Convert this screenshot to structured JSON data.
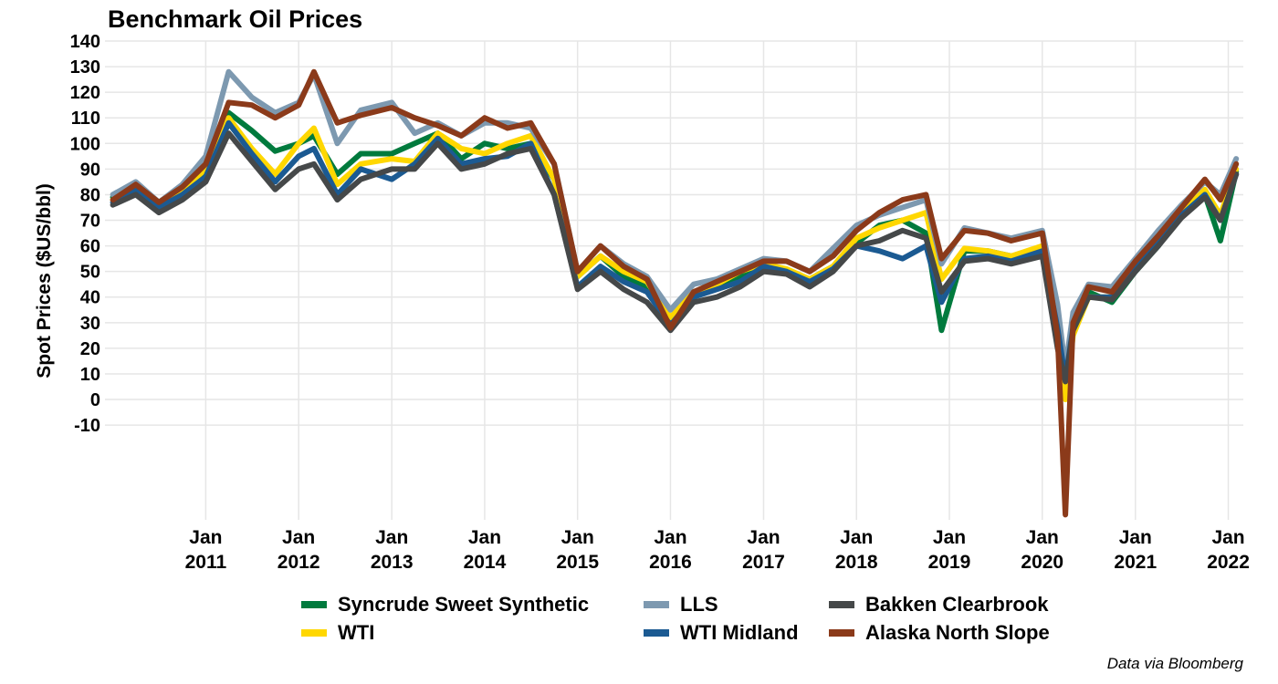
{
  "chart_data": {
    "type": "line",
    "title": "Benchmark Oil Prices",
    "ylabel": "Spot Prices ($US/bbl)",
    "xlabel": "",
    "ylim": [
      -47,
      140
    ],
    "y_ticks": [
      "140",
      "130",
      "120",
      "110",
      "100",
      "90",
      "80",
      "70",
      "60",
      "50",
      "40",
      "30",
      "20",
      "10",
      "0",
      "-10"
    ],
    "x_ticks": [
      {
        "date": "2011-01",
        "label": [
          "Jan",
          "2011"
        ]
      },
      {
        "date": "2012-01",
        "label": [
          "Jan",
          "2012"
        ]
      },
      {
        "date": "2013-01",
        "label": [
          "Jan",
          "2013"
        ]
      },
      {
        "date": "2014-01",
        "label": [
          "Jan",
          "2014"
        ]
      },
      {
        "date": "2015-01",
        "label": [
          "Jan",
          "2015"
        ]
      },
      {
        "date": "2016-01",
        "label": [
          "Jan",
          "2016"
        ]
      },
      {
        "date": "2017-01",
        "label": [
          "Jan",
          "2017"
        ]
      },
      {
        "date": "2018-01",
        "label": [
          "Jan",
          "2018"
        ]
      },
      {
        "date": "2019-01",
        "label": [
          "Jan",
          "2019"
        ]
      },
      {
        "date": "2020-01",
        "label": [
          "Jan",
          "2020"
        ]
      },
      {
        "date": "2021-01",
        "label": [
          "Jan",
          "2021"
        ]
      },
      {
        "date": "2022-01",
        "label": [
          "Jan",
          "2022"
        ]
      }
    ],
    "grid": true,
    "legend_position": "bottom",
    "x": [
      "2010-01",
      "2010-04",
      "2010-07",
      "2010-10",
      "2011-01",
      "2011-04",
      "2011-07",
      "2011-10",
      "2012-01",
      "2012-03",
      "2012-06",
      "2012-09",
      "2013-01",
      "2013-04",
      "2013-07",
      "2013-10",
      "2014-01",
      "2014-04",
      "2014-07",
      "2014-10",
      "2015-01",
      "2015-04",
      "2015-07",
      "2015-10",
      "2016-01",
      "2016-04",
      "2016-07",
      "2016-10",
      "2017-01",
      "2017-04",
      "2017-07",
      "2017-10",
      "2018-01",
      "2018-04",
      "2018-07",
      "2018-10",
      "2018-12",
      "2019-03",
      "2019-06",
      "2019-09",
      "2020-01",
      "2020-03",
      "2020-04",
      "2020-05",
      "2020-07",
      "2020-10",
      "2021-01",
      "2021-04",
      "2021-07",
      "2021-10",
      "2021-12",
      "2022-02"
    ],
    "series": [
      {
        "name": "Syncrude Sweet Synthetic",
        "color": "#007a3d",
        "values": [
          79,
          82,
          76,
          80,
          88,
          112,
          105,
          97,
          100,
          103,
          88,
          96,
          96,
          100,
          104,
          94,
          100,
          98,
          100,
          86,
          48,
          56,
          48,
          44,
          30,
          42,
          44,
          48,
          54,
          50,
          47,
          52,
          61,
          68,
          70,
          65,
          27,
          58,
          58,
          56,
          57,
          22,
          10,
          30,
          42,
          38,
          50,
          60,
          73,
          80,
          62,
          89
        ]
      },
      {
        "name": "WTI",
        "color": "#ffd700",
        "values": [
          78,
          84,
          77,
          82,
          90,
          110,
          98,
          88,
          100,
          106,
          84,
          92,
          94,
          93,
          104,
          98,
          96,
          100,
          103,
          86,
          48,
          56,
          50,
          46,
          32,
          42,
          45,
          50,
          53,
          51,
          47,
          52,
          63,
          67,
          70,
          73,
          47,
          59,
          58,
          56,
          60,
          30,
          0,
          25,
          40,
          40,
          52,
          62,
          73,
          82,
          72,
          90
        ]
      },
      {
        "name": "LLS",
        "color": "#7d99b0",
        "values": [
          80,
          85,
          77,
          84,
          95,
          128,
          118,
          112,
          116,
          127,
          100,
          113,
          116,
          104,
          108,
          103,
          108,
          108,
          106,
          92,
          50,
          60,
          53,
          48,
          35,
          45,
          47,
          51,
          55,
          54,
          50,
          59,
          68,
          72,
          75,
          78,
          53,
          67,
          65,
          63,
          66,
          37,
          12,
          34,
          45,
          44,
          55,
          66,
          76,
          85,
          80,
          94
        ]
      },
      {
        "name": "WTI Midland",
        "color": "#1b5a92",
        "values": [
          77,
          82,
          75,
          80,
          87,
          108,
          96,
          85,
          95,
          98,
          80,
          90,
          86,
          92,
          102,
          92,
          94,
          95,
          100,
          80,
          44,
          52,
          46,
          42,
          29,
          40,
          43,
          46,
          52,
          50,
          46,
          51,
          60,
          58,
          55,
          60,
          38,
          55,
          56,
          54,
          58,
          28,
          8,
          28,
          40,
          40,
          51,
          61,
          72,
          80,
          70,
          88
        ]
      },
      {
        "name": "Bakken Clearbrook",
        "color": "#454849",
        "values": [
          76,
          80,
          73,
          78,
          85,
          104,
          93,
          82,
          90,
          92,
          78,
          86,
          90,
          90,
          100,
          90,
          92,
          96,
          98,
          80,
          43,
          50,
          43,
          38,
          27,
          38,
          40,
          44,
          50,
          49,
          44,
          50,
          60,
          62,
          66,
          63,
          42,
          54,
          55,
          53,
          56,
          20,
          7,
          27,
          40,
          39,
          50,
          60,
          71,
          79,
          70,
          88
        ]
      },
      {
        "name": "Alaska North Slope",
        "color": "#8b3a1a",
        "values": [
          78,
          84,
          77,
          83,
          92,
          116,
          115,
          110,
          115,
          128,
          108,
          111,
          114,
          110,
          107,
          103,
          110,
          106,
          108,
          92,
          50,
          60,
          52,
          47,
          28,
          42,
          46,
          50,
          54,
          54,
          50,
          56,
          66,
          73,
          78,
          80,
          55,
          66,
          65,
          62,
          65,
          25,
          -45,
          30,
          44,
          42,
          54,
          64,
          75,
          86,
          78,
          92
        ]
      }
    ]
  },
  "source_note": "Data via Bloomberg"
}
